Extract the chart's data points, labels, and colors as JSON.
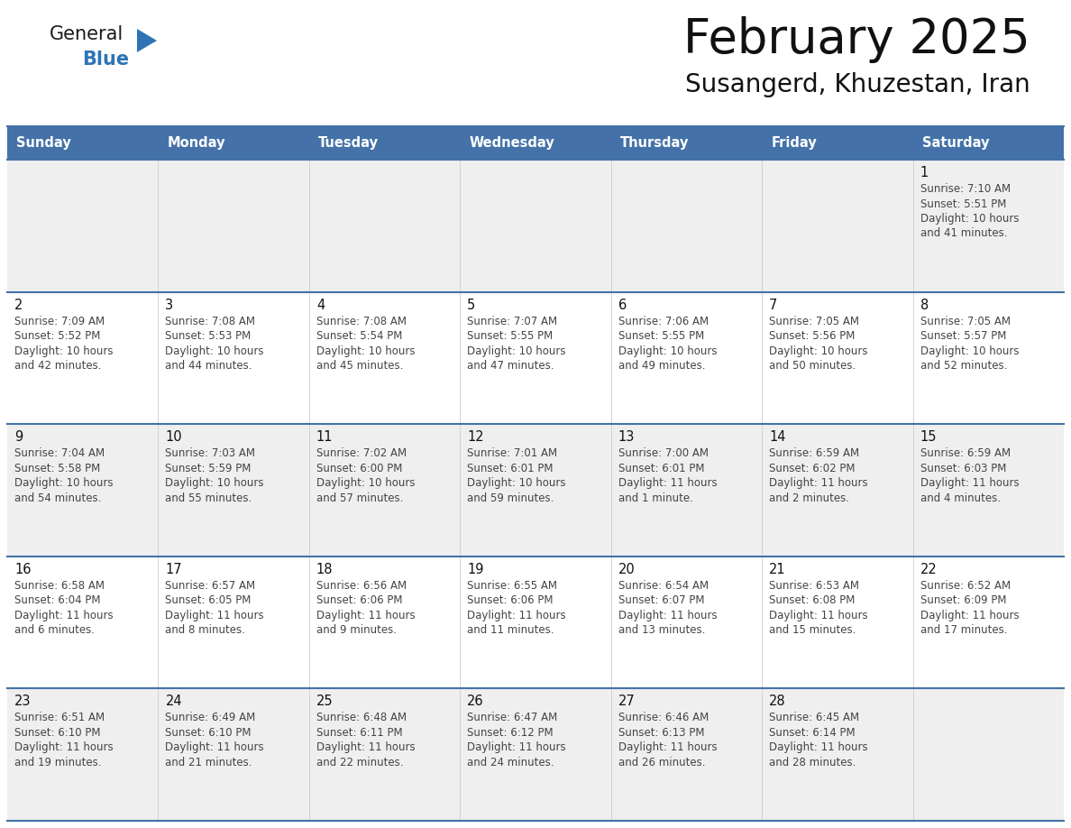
{
  "title": "February 2025",
  "subtitle": "Susangerd, Khuzestan, Iran",
  "days_of_week": [
    "Sunday",
    "Monday",
    "Tuesday",
    "Wednesday",
    "Thursday",
    "Friday",
    "Saturday"
  ],
  "header_bg": "#4472A8",
  "header_text": "#FFFFFF",
  "row_bg_odd": "#EFEFEF",
  "row_bg_even": "#FFFFFF",
  "cell_text_color": "#333333",
  "day_num_color": "#111111",
  "border_color": "#4472A8",
  "logo_general_color": "#1a1a1a",
  "logo_blue_color": "#2E74B5",
  "logo_triangle_color": "#2E74B5",
  "calendar_data": [
    [
      null,
      null,
      null,
      null,
      null,
      null,
      {
        "day": "1",
        "sunrise": "7:10 AM",
        "sunset": "5:51 PM",
        "daylight1": "10 hours",
        "daylight2": "and 41 minutes."
      }
    ],
    [
      {
        "day": "2",
        "sunrise": "7:09 AM",
        "sunset": "5:52 PM",
        "daylight1": "10 hours",
        "daylight2": "and 42 minutes."
      },
      {
        "day": "3",
        "sunrise": "7:08 AM",
        "sunset": "5:53 PM",
        "daylight1": "10 hours",
        "daylight2": "and 44 minutes."
      },
      {
        "day": "4",
        "sunrise": "7:08 AM",
        "sunset": "5:54 PM",
        "daylight1": "10 hours",
        "daylight2": "and 45 minutes."
      },
      {
        "day": "5",
        "sunrise": "7:07 AM",
        "sunset": "5:55 PM",
        "daylight1": "10 hours",
        "daylight2": "and 47 minutes."
      },
      {
        "day": "6",
        "sunrise": "7:06 AM",
        "sunset": "5:55 PM",
        "daylight1": "10 hours",
        "daylight2": "and 49 minutes."
      },
      {
        "day": "7",
        "sunrise": "7:05 AM",
        "sunset": "5:56 PM",
        "daylight1": "10 hours",
        "daylight2": "and 50 minutes."
      },
      {
        "day": "8",
        "sunrise": "7:05 AM",
        "sunset": "5:57 PM",
        "daylight1": "10 hours",
        "daylight2": "and 52 minutes."
      }
    ],
    [
      {
        "day": "9",
        "sunrise": "7:04 AM",
        "sunset": "5:58 PM",
        "daylight1": "10 hours",
        "daylight2": "and 54 minutes."
      },
      {
        "day": "10",
        "sunrise": "7:03 AM",
        "sunset": "5:59 PM",
        "daylight1": "10 hours",
        "daylight2": "and 55 minutes."
      },
      {
        "day": "11",
        "sunrise": "7:02 AM",
        "sunset": "6:00 PM",
        "daylight1": "10 hours",
        "daylight2": "and 57 minutes."
      },
      {
        "day": "12",
        "sunrise": "7:01 AM",
        "sunset": "6:01 PM",
        "daylight1": "10 hours",
        "daylight2": "and 59 minutes."
      },
      {
        "day": "13",
        "sunrise": "7:00 AM",
        "sunset": "6:01 PM",
        "daylight1": "11 hours",
        "daylight2": "and 1 minute."
      },
      {
        "day": "14",
        "sunrise": "6:59 AM",
        "sunset": "6:02 PM",
        "daylight1": "11 hours",
        "daylight2": "and 2 minutes."
      },
      {
        "day": "15",
        "sunrise": "6:59 AM",
        "sunset": "6:03 PM",
        "daylight1": "11 hours",
        "daylight2": "and 4 minutes."
      }
    ],
    [
      {
        "day": "16",
        "sunrise": "6:58 AM",
        "sunset": "6:04 PM",
        "daylight1": "11 hours",
        "daylight2": "and 6 minutes."
      },
      {
        "day": "17",
        "sunrise": "6:57 AM",
        "sunset": "6:05 PM",
        "daylight1": "11 hours",
        "daylight2": "and 8 minutes."
      },
      {
        "day": "18",
        "sunrise": "6:56 AM",
        "sunset": "6:06 PM",
        "daylight1": "11 hours",
        "daylight2": "and 9 minutes."
      },
      {
        "day": "19",
        "sunrise": "6:55 AM",
        "sunset": "6:06 PM",
        "daylight1": "11 hours",
        "daylight2": "and 11 minutes."
      },
      {
        "day": "20",
        "sunrise": "6:54 AM",
        "sunset": "6:07 PM",
        "daylight1": "11 hours",
        "daylight2": "and 13 minutes."
      },
      {
        "day": "21",
        "sunrise": "6:53 AM",
        "sunset": "6:08 PM",
        "daylight1": "11 hours",
        "daylight2": "and 15 minutes."
      },
      {
        "day": "22",
        "sunrise": "6:52 AM",
        "sunset": "6:09 PM",
        "daylight1": "11 hours",
        "daylight2": "and 17 minutes."
      }
    ],
    [
      {
        "day": "23",
        "sunrise": "6:51 AM",
        "sunset": "6:10 PM",
        "daylight1": "11 hours",
        "daylight2": "and 19 minutes."
      },
      {
        "day": "24",
        "sunrise": "6:49 AM",
        "sunset": "6:10 PM",
        "daylight1": "11 hours",
        "daylight2": "and 21 minutes."
      },
      {
        "day": "25",
        "sunrise": "6:48 AM",
        "sunset": "6:11 PM",
        "daylight1": "11 hours",
        "daylight2": "and 22 minutes."
      },
      {
        "day": "26",
        "sunrise": "6:47 AM",
        "sunset": "6:12 PM",
        "daylight1": "11 hours",
        "daylight2": "and 24 minutes."
      },
      {
        "day": "27",
        "sunrise": "6:46 AM",
        "sunset": "6:13 PM",
        "daylight1": "11 hours",
        "daylight2": "and 26 minutes."
      },
      {
        "day": "28",
        "sunrise": "6:45 AM",
        "sunset": "6:14 PM",
        "daylight1": "11 hours",
        "daylight2": "and 28 minutes."
      },
      null
    ]
  ]
}
